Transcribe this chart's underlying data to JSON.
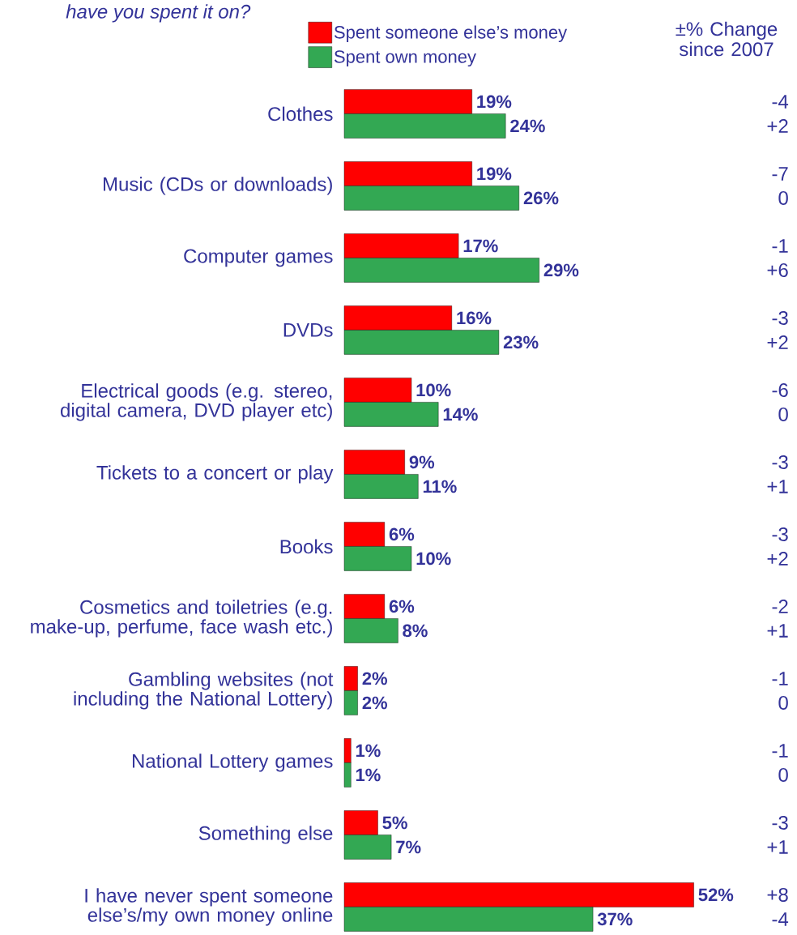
{
  "chart_data": {
    "type": "bar",
    "orientation": "horizontal",
    "title": "have you spent it on?",
    "categories": [
      "Clothes",
      "Music (CDs or downloads)",
      "Computer games",
      "DVDs",
      "Electrical goods (e.g. stereo, digital camera, DVD player etc)",
      "Tickets to a concert or play",
      "Books",
      "Cosmetics and toiletries (e.g. make-up, perfume, face wash etc.)",
      "Gambling websites (not including the National Lottery)",
      "National Lottery games",
      "Something else",
      "I have never spent someone else’s/my own money online"
    ],
    "series": [
      {
        "name": "Spent someone else’s money",
        "color": "#ff0000",
        "values": [
          19,
          19,
          17,
          16,
          10,
          9,
          6,
          6,
          2,
          1,
          5,
          52
        ],
        "value_labels": [
          "19%",
          "19%",
          "17%",
          "16%",
          "10%",
          "9%",
          "6%",
          "6%",
          "2%",
          "1%",
          "5%",
          "52%"
        ]
      },
      {
        "name": "Spent own money",
        "color": "#33a853",
        "values": [
          24,
          26,
          29,
          23,
          14,
          11,
          10,
          8,
          2,
          1,
          7,
          37
        ],
        "value_labels": [
          "24%",
          "26%",
          "29%",
          "23%",
          "14%",
          "11%",
          "10%",
          "8%",
          "2%",
          "1%",
          "7%",
          "37%"
        ]
      }
    ],
    "annotations": [
      "±% Change since 2007",
      "-4",
      "+2",
      "-7",
      "0",
      "-1",
      "+6",
      "-3",
      "+2",
      "-6",
      "0",
      "-3",
      "+1",
      "-3",
      "+2",
      "-2",
      "+1",
      "-1",
      "0",
      "-1",
      "0",
      "-3",
      "+1",
      "+8",
      "-4"
    ],
    "legend": "top"
  }
}
